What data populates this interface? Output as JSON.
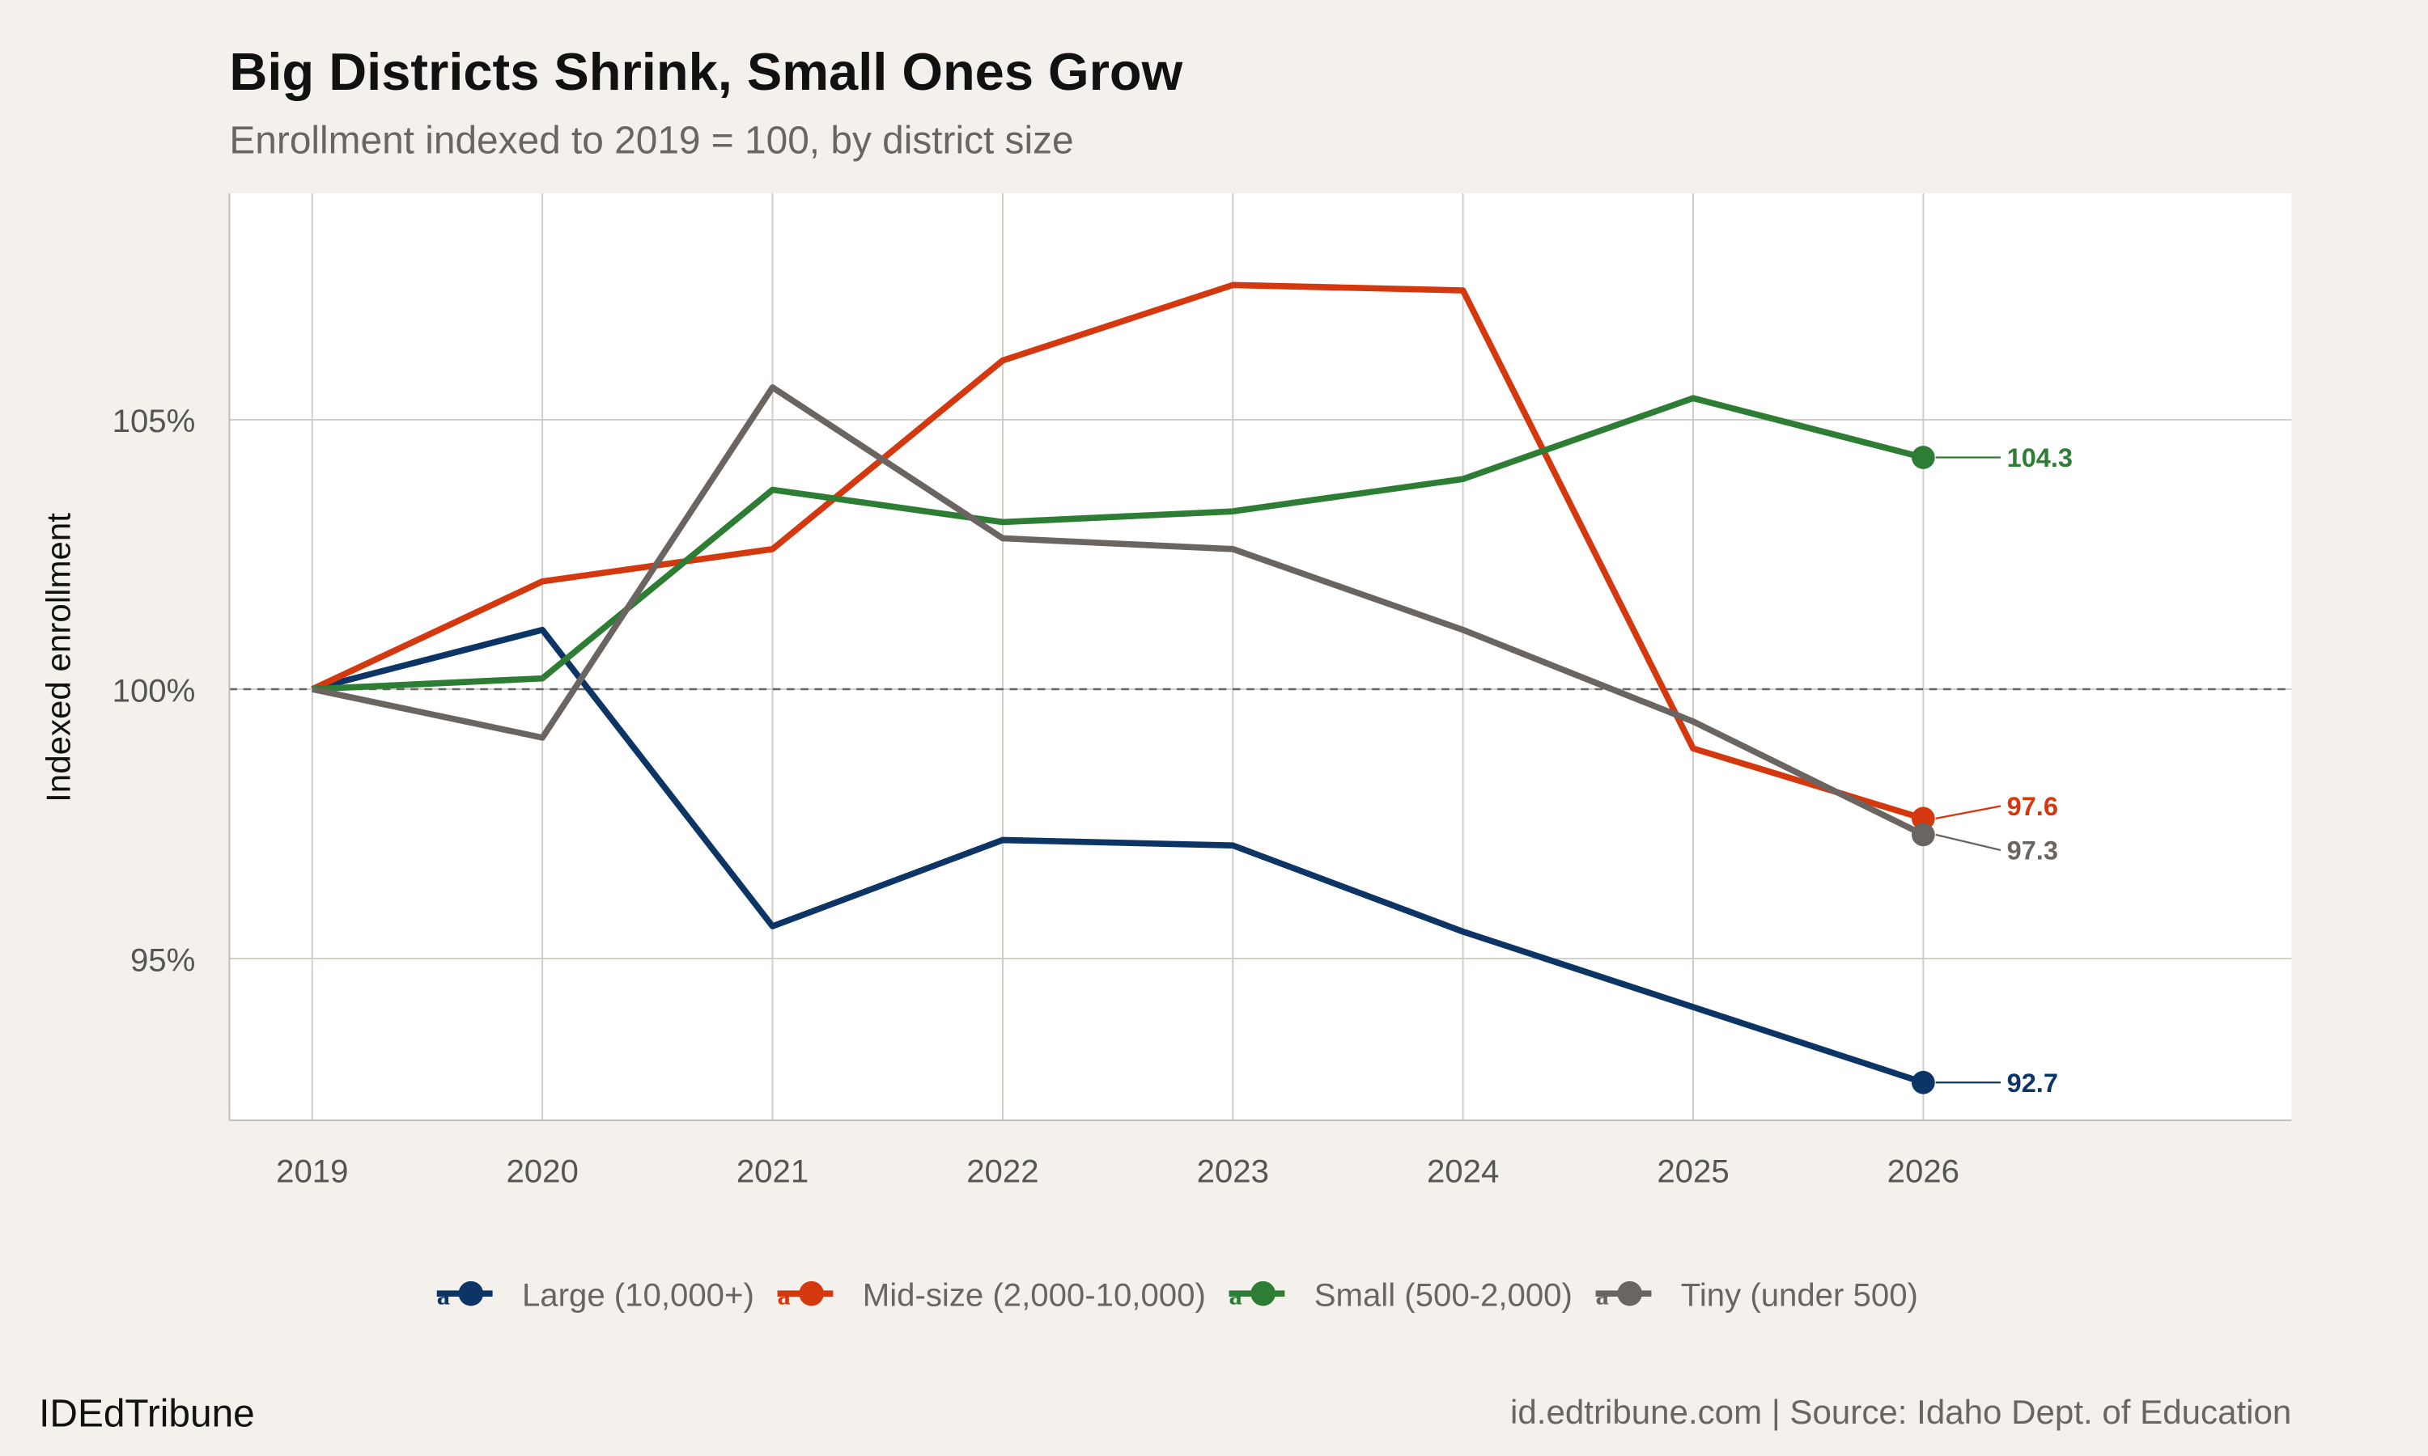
{
  "title": "Big Districts Shrink, Small Ones Grow",
  "subtitle": "Enrollment indexed to 2019 = 100, by district size",
  "brand": "IDEdTribune",
  "source": "id.edtribune.com | Source: Idaho Dept. of Education",
  "chart_data": {
    "type": "line",
    "title": "Big Districts Shrink, Small Ones Grow",
    "subtitle": "Enrollment indexed to 2019 = 100, by district size",
    "xlabel": "",
    "ylabel": "Indexed enrollment",
    "x": [
      2019,
      2020,
      2021,
      2022,
      2023,
      2024,
      2025,
      2026
    ],
    "x_tick_labels": [
      "2019",
      "2020",
      "2021",
      "2022",
      "2023",
      "2024",
      "2025",
      "2026"
    ],
    "y_ticks": [
      95,
      100,
      105
    ],
    "y_tick_labels": [
      "95%",
      "100%",
      "105%"
    ],
    "xlim": [
      2018.64,
      2027.6
    ],
    "ylim": [
      92.0,
      109.2
    ],
    "reference_line": 100,
    "grid": true,
    "legend_position": "bottom",
    "series": [
      {
        "name": "Large (10,000+)",
        "color": "#0c3566",
        "values": [
          100,
          101.1,
          95.6,
          97.2,
          97.1,
          95.5,
          94.1,
          92.7
        ],
        "end_label": "92.7"
      },
      {
        "name": "Mid-size (2,000-10,000)",
        "color": "#d4380f",
        "values": [
          100,
          102.0,
          102.6,
          106.1,
          107.5,
          107.4,
          98.9,
          97.6
        ],
        "end_label": "97.6"
      },
      {
        "name": "Small (500-2,000)",
        "color": "#2e7d35",
        "values": [
          100,
          100.2,
          103.7,
          103.1,
          103.3,
          103.9,
          105.4,
          104.3
        ],
        "end_label": "104.3"
      },
      {
        "name": "Tiny (under 500)",
        "color": "#6b6561",
        "values": [
          100,
          99.1,
          105.6,
          102.8,
          102.6,
          101.1,
          99.4,
          97.3
        ],
        "end_label": "97.3"
      }
    ]
  }
}
